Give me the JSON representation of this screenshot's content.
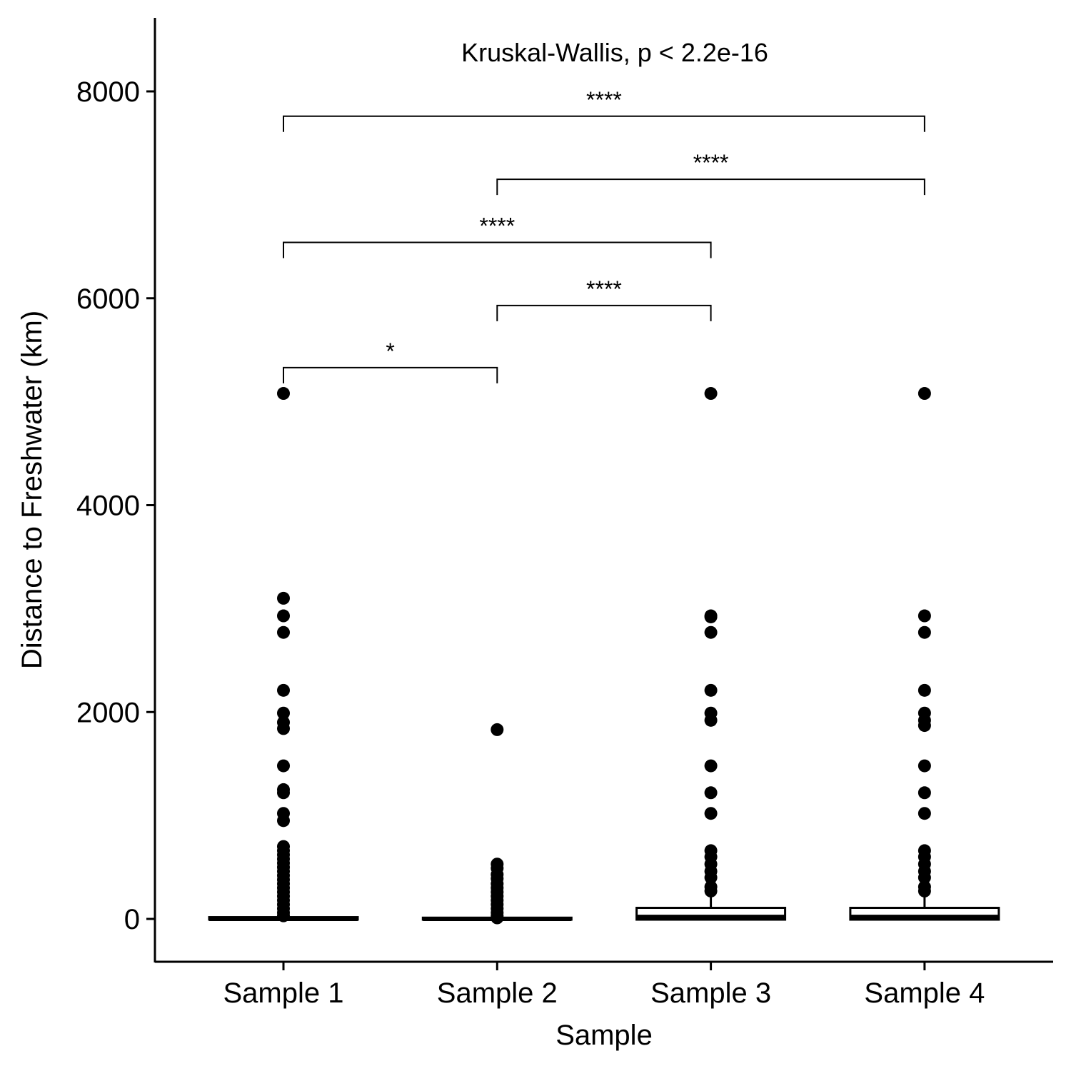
{
  "chart_data": {
    "type": "box",
    "title": "",
    "test_label": "Kruskal-Wallis, p < 2.2e-16",
    "xlabel": "Sample",
    "ylabel": "Distance to Freshwater (km)",
    "ylim": [
      -410,
      8700
    ],
    "yticks": [
      0,
      2000,
      4000,
      6000,
      8000
    ],
    "grid": false,
    "legend": "none",
    "categories": [
      "Sample 1",
      "Sample 2",
      "Sample 3",
      "Sample 4"
    ],
    "boxes": [
      {
        "name": "Sample 1",
        "q1": 0,
        "median": 0,
        "q3": 10,
        "whisker_low": 0,
        "whisker_high": 20,
        "outliers": [
          5080,
          3100,
          2930,
          2770,
          2210,
          1990,
          1900,
          1840,
          1480,
          1250,
          1220,
          1020,
          950,
          700,
          660,
          620,
          580,
          540,
          500,
          460,
          420,
          380,
          340,
          300,
          260,
          220,
          180,
          140,
          100,
          60,
          30
        ]
      },
      {
        "name": "Sample 2",
        "q1": 0,
        "median": 0,
        "q3": 5,
        "whisker_low": 0,
        "whisker_high": 10,
        "outliers": [
          1830,
          530,
          490,
          430,
          390,
          340,
          300,
          260,
          220,
          180,
          140,
          100,
          60,
          30,
          10
        ]
      },
      {
        "name": "Sample 3",
        "q1": 0,
        "median": 20,
        "q3": 100,
        "whisker_low": 0,
        "whisker_high": 250,
        "outliers": [
          5080,
          2930,
          2920,
          2770,
          2210,
          1990,
          1920,
          1480,
          1220,
          1020,
          660,
          600,
          530,
          460,
          400,
          310,
          270
        ]
      },
      {
        "name": "Sample 4",
        "q1": 0,
        "median": 20,
        "q3": 100,
        "whisker_low": 0,
        "whisker_high": 250,
        "outliers": [
          5080,
          2930,
          2770,
          2210,
          1990,
          1920,
          1870,
          1480,
          1220,
          1020,
          660,
          600,
          530,
          460,
          400,
          310,
          270
        ]
      }
    ],
    "comparisons": [
      {
        "from": "Sample 1",
        "to": "Sample 2",
        "y": 5330,
        "label": "*"
      },
      {
        "from": "Sample 2",
        "to": "Sample 3",
        "y": 5930,
        "label": "****"
      },
      {
        "from": "Sample 1",
        "to": "Sample 3",
        "y": 6540,
        "label": "****"
      },
      {
        "from": "Sample 2",
        "to": "Sample 4",
        "y": 7150,
        "label": "****"
      },
      {
        "from": "Sample 1",
        "to": "Sample 4",
        "y": 7760,
        "label": "****"
      }
    ]
  }
}
